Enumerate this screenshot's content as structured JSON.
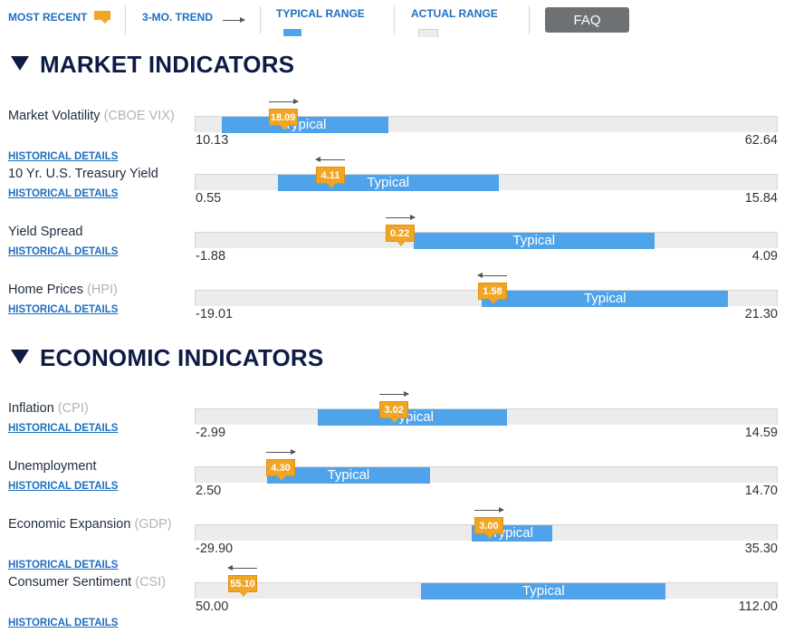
{
  "legend": {
    "most_recent": "MOST RECENT",
    "trend": "3-MO. TREND",
    "typical_range": "TYPICAL RANGE",
    "actual_range": "ACTUAL RANGE",
    "faq": "FAQ"
  },
  "colors": {
    "typical": "#4ea3ea",
    "marker": "#f0a524",
    "heading": "#0d1b45",
    "link": "#1e6fbf"
  },
  "sections": [
    {
      "title": "MARKET INDICATORS",
      "indicators": [
        {
          "name": "Market Volatility",
          "abbr": "(CBOE VIX)",
          "link": "HISTORICAL DETAILS",
          "min": "10.13",
          "max": "62.64",
          "typical_label": "Typical",
          "typical_low": 12.5,
          "typical_high": 27.5,
          "current": "18.09",
          "trend": "up"
        },
        {
          "name": "10 Yr. U.S. Treasury Yield",
          "abbr": "",
          "link": "HISTORICAL DETAILS",
          "min": "0.55",
          "max": "15.84",
          "typical_label": "Typical",
          "typical_low": 2.7,
          "typical_high": 8.5,
          "current": "4.11",
          "trend": "down"
        },
        {
          "name": "Yield Spread",
          "abbr": "",
          "link": "HISTORICAL DETAILS",
          "min": "-1.88",
          "max": "4.09",
          "typical_label": "Typical",
          "typical_low": 0.35,
          "typical_high": 2.82,
          "current": "0.22",
          "trend": "up"
        },
        {
          "name": "Home Prices",
          "abbr": "(HPI)",
          "link": "HISTORICAL DETAILS",
          "min": "-19.01",
          "max": "21.30",
          "typical_label": "Typical",
          "typical_low": 0.8,
          "typical_high": 17.8,
          "current": "1.58",
          "trend": "down"
        }
      ]
    },
    {
      "title": "ECONOMIC INDICATORS",
      "indicators": [
        {
          "name": "Inflation",
          "abbr": "(CPI)",
          "link": "HISTORICAL DETAILS",
          "min": "-2.99",
          "max": "14.59",
          "typical_label": "Typical",
          "typical_low": 0.7,
          "typical_high": 6.4,
          "current": "3.02",
          "trend": "up"
        },
        {
          "name": "Unemployment",
          "abbr": "",
          "link": "HISTORICAL DETAILS",
          "min": "2.50",
          "max": "14.70",
          "typical_label": "Typical",
          "typical_low": 4.0,
          "typical_high": 7.4,
          "current": "4.30",
          "trend": "up"
        },
        {
          "name": "Economic Expansion",
          "abbr": "(GDP)",
          "link": "HISTORICAL DETAILS",
          "min": "-29.90",
          "max": "35.30",
          "typical_label": "Typical",
          "typical_low": 1.0,
          "typical_high": 10.0,
          "current": "3.00",
          "trend": "up"
        },
        {
          "name": "Consumer Sentiment",
          "abbr": "(CSI)",
          "link": "HISTORICAL DETAILS",
          "min": "50.00",
          "max": "112.00",
          "typical_label": "Typical",
          "typical_low": 74.0,
          "typical_high": 100.0,
          "current": "55.10",
          "trend": "down"
        }
      ]
    }
  ]
}
